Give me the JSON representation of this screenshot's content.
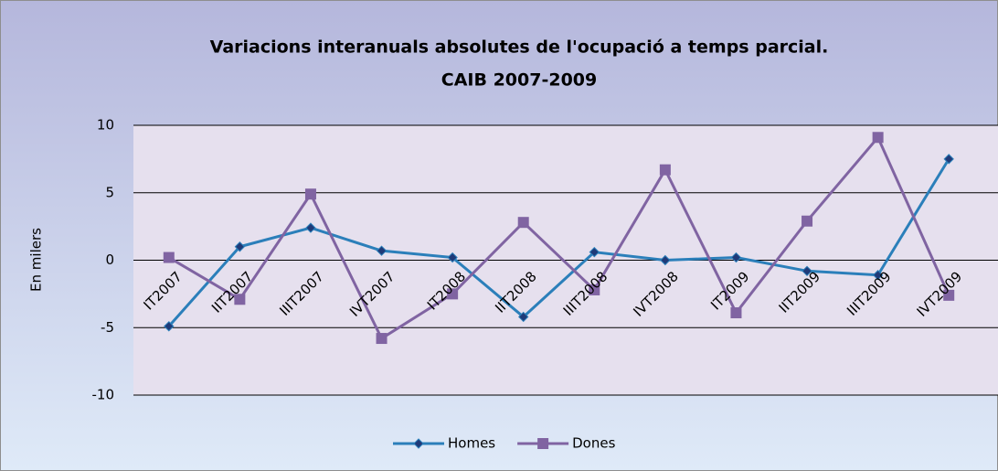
{
  "chart_data": {
    "type": "line",
    "title": [
      "Variacions interanuals absolutes de l'ocupació a temps parcial.",
      "CAIB 2007-2009"
    ],
    "y_label": "En milers",
    "categories": [
      "IT2007",
      "IIT2007",
      "IIIT2007",
      "IVT2007",
      "IT2008",
      "IIT2008",
      "IIIT2008",
      "IVT2008",
      "IT2009",
      "IIT2009",
      "IIIT2009",
      "IVT2009"
    ],
    "series": [
      {
        "name": "Homes",
        "color": "#2b7fba",
        "marker": "diamond",
        "marker_color": "#1f3a78",
        "values": [
          -4.9,
          1.0,
          2.4,
          0.7,
          0.2,
          -4.2,
          0.6,
          0.0,
          0.2,
          -0.8,
          -1.1,
          7.5
        ]
      },
      {
        "name": "Dones",
        "color": "#8064a2",
        "marker": "square",
        "marker_color": "#8064a2",
        "values": [
          0.2,
          -2.9,
          4.9,
          -5.8,
          -2.5,
          2.8,
          -2.2,
          6.7,
          -3.9,
          2.9,
          9.1,
          -2.6
        ]
      }
    ],
    "ylim": [
      -10,
      10
    ],
    "yticks": [
      -10,
      -5,
      0,
      5,
      10
    ],
    "grid": true,
    "legend": "bottom"
  }
}
